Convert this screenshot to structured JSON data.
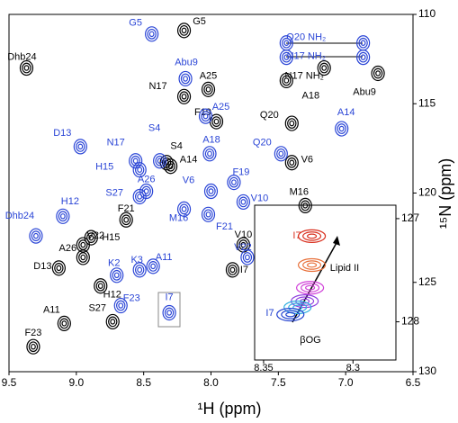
{
  "chart_data": [
    {
      "type": "scatter",
      "x_label": "¹H (ppm)",
      "y_label": "¹⁵N (ppm)",
      "xlim": [
        9.5,
        6.5
      ],
      "ylim": [
        110,
        130
      ],
      "y_inverted": true,
      "y_axis_side": "right",
      "xticks": [
        9.5,
        {
          "value": 9,
          "label": "9.0"
        },
        8.5,
        {
          "value": 8,
          "label": "8.0"
        },
        7.5,
        {
          "value": 7,
          "label": "7.0"
        },
        6.5
      ],
      "yticks": [
        110,
        115,
        120,
        125,
        130
      ],
      "series": [
        {
          "color": "#000000",
          "labels": [
            "G5",
            "Dhb24",
            "A25",
            "N17",
            "F19",
            "Abu9",
            "N17 NH₂",
            "A18",
            "Q20",
            "S4",
            "A14",
            "V6",
            "F21",
            "H15",
            "V22",
            "M16",
            "V10",
            "A26",
            "D13",
            "I7",
            "H12",
            "A11",
            "S27",
            "F23"
          ],
          "x": [
            8.2,
            9.37,
            8.02,
            8.2,
            7.96,
            6.76,
            7.16,
            7.44,
            7.4,
            8.33,
            8.3,
            7.4,
            8.63,
            8.89,
            8.95,
            7.3,
            7.76,
            8.95,
            9.13,
            7.84,
            8.82,
            9.09,
            8.73,
            9.32
          ],
          "values": [
            110.9,
            113.0,
            114.2,
            114.6,
            116.0,
            113.3,
            113.0,
            113.7,
            116.1,
            118.3,
            118.5,
            118.3,
            121.5,
            122.5,
            122.9,
            120.7,
            122.9,
            123.6,
            124.2,
            124.3,
            125.2,
            127.3,
            127.2,
            128.6
          ]
        },
        {
          "color": "#2a45d6",
          "labels": [
            "G5",
            "Abu9",
            "A25",
            "Q20 NH₂",
            null,
            "N17 NH₂",
            null,
            "A14",
            "D13",
            "N17",
            "S4",
            "H15",
            "A18",
            "Q20",
            "V6",
            "F19",
            "S27",
            "A26",
            "M16",
            "F21",
            "V10",
            "H12",
            "Dhb24",
            "V22",
            "K2",
            "K3",
            "A11",
            "F23",
            "I7"
          ],
          "x": [
            8.44,
            8.19,
            8.04,
            7.44,
            6.87,
            7.44,
            6.87,
            7.03,
            8.97,
            8.56,
            8.38,
            8.53,
            8.01,
            7.48,
            8.0,
            7.83,
            8.53,
            8.48,
            8.2,
            8.02,
            7.76,
            9.1,
            9.3,
            7.73,
            8.7,
            8.53,
            8.43,
            8.67,
            8.31
          ],
          "values": [
            111.1,
            113.6,
            115.7,
            111.6,
            111.6,
            112.4,
            112.4,
            116.4,
            117.4,
            118.2,
            118.2,
            118.7,
            117.8,
            117.8,
            119.9,
            119.4,
            120.2,
            119.9,
            120.9,
            121.2,
            120.5,
            121.3,
            122.4,
            123.6,
            124.6,
            124.3,
            124.1,
            126.3,
            126.7
          ]
        }
      ]
    },
    {
      "type": "scatter",
      "xlim": [
        8.355,
        8.276
      ],
      "ylim": [
        126.87,
        128.37
      ],
      "y_inverted": true,
      "xticks": [
        8.35,
        8.3
      ],
      "yticks": [
        127,
        128
      ],
      "annotations": [
        "I7",
        "Lipid II",
        "I7",
        "βOG"
      ],
      "series": [
        {
          "color": "#d9301f",
          "x": [
            8.323
          ],
          "values": [
            127.17
          ]
        },
        {
          "color": "#e8703a",
          "x": [
            8.323
          ],
          "values": [
            127.45
          ]
        },
        {
          "color": "#d040d8",
          "x": [
            8.324
          ],
          "values": [
            127.67
          ]
        },
        {
          "color": "#9040e0",
          "x": [
            8.327
          ],
          "values": [
            127.8
          ]
        },
        {
          "color": "#30b0e0",
          "x": [
            8.331
          ],
          "values": [
            127.86
          ]
        },
        {
          "color": "#2040d0",
          "x": [
            8.335
          ],
          "values": [
            127.93
          ]
        }
      ]
    }
  ]
}
